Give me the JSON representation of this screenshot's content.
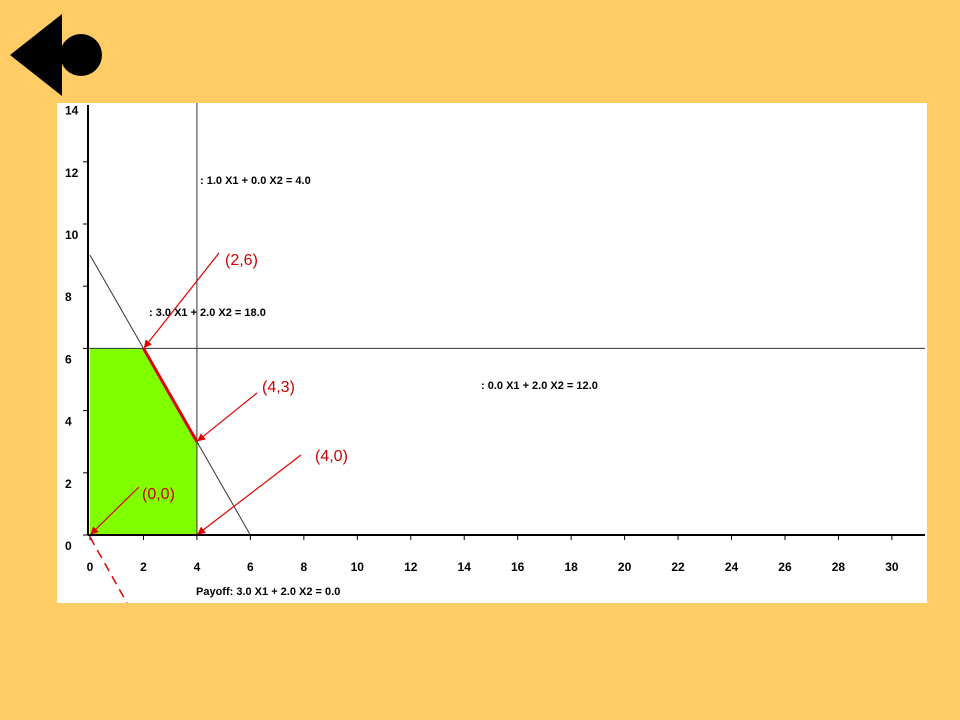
{
  "nav": {
    "back_icon": "back-arrow-icon"
  },
  "colors": {
    "background": "#FFCC66",
    "plot_bg": "#FFFFFF",
    "feasible": "#80FF00",
    "annotation": "#E00000",
    "line": "#333333"
  },
  "chart_data": {
    "type": "line",
    "xlim": [
      0,
      30
    ],
    "ylim": [
      0,
      14
    ],
    "x_ticks": [
      0,
      2,
      4,
      6,
      8,
      10,
      12,
      14,
      16,
      18,
      20,
      22,
      24,
      26,
      28,
      30
    ],
    "y_ticks": [
      0,
      2,
      4,
      6,
      8,
      10,
      12,
      14
    ],
    "feasible_region": [
      [
        0,
        0
      ],
      [
        0,
        6
      ],
      [
        2,
        6
      ],
      [
        4,
        3
      ],
      [
        4,
        0
      ]
    ],
    "constraints": [
      {
        "label": ":  1.0 X1 +   0.0 X2 =   4.0",
        "a": 1.0,
        "b": 0.0,
        "c": 4.0
      },
      {
        "label": ":   3.0 X1 +   2.0 X2 =  18.0",
        "a": 3.0,
        "b": 2.0,
        "c": 18.0
      },
      {
        "label": ":   0.0 X1 +   2.0 X2 =   12.0",
        "a": 0.0,
        "b": 2.0,
        "c": 12.0
      }
    ],
    "payoff": {
      "label": "Payoff:   3.0 X1 +   2.0 X2 =   0.0",
      "a": 3.0,
      "b": 2.0,
      "c": 0.0
    },
    "optimal_edge": [
      [
        2,
        6
      ],
      [
        4,
        3
      ]
    ],
    "points": [
      {
        "label": "(2,6)",
        "x": 2,
        "y": 6
      },
      {
        "label": "(4,3)",
        "x": 4,
        "y": 3
      },
      {
        "label": "(4,0)",
        "x": 4,
        "y": 0
      },
      {
        "label": "(0,0)",
        "x": 0,
        "y": 0
      }
    ]
  }
}
